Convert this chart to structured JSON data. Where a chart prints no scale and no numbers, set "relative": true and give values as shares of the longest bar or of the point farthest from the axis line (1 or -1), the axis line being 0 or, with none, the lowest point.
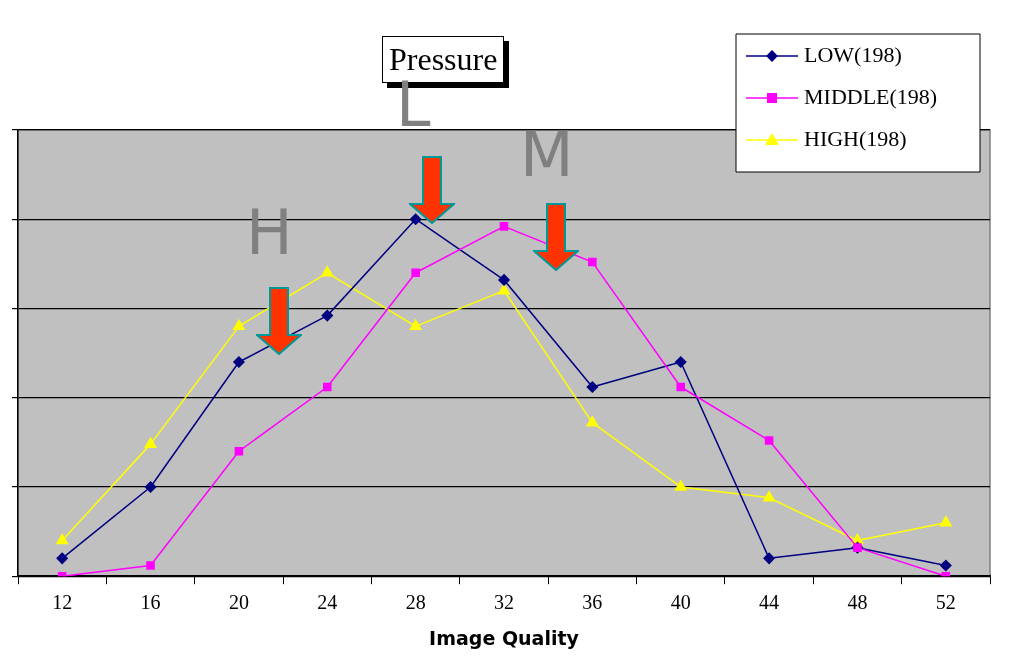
{
  "chart_data": {
    "type": "line",
    "relative": true,
    "xlabel": "Image Quality",
    "categories": [
      "12",
      "16",
      "20",
      "24",
      "28",
      "32",
      "36",
      "40",
      "44",
      "48",
      "52"
    ],
    "series": [
      {
        "name": "LOW(198)",
        "color": "#000080",
        "marker": "diamond",
        "values": [
          0.05,
          0.25,
          0.6,
          0.73,
          1,
          0.83,
          0.53,
          0.6,
          0.05,
          0.08,
          0.03
        ]
      },
      {
        "name": "MIDDLE(198)",
        "color": "#ff00ff",
        "marker": "square",
        "values": [
          0,
          0.03,
          0.35,
          0.53,
          0.85,
          0.98,
          0.88,
          0.53,
          0.38,
          0.08,
          0
        ]
      },
      {
        "name": "HIGH(198)",
        "color": "#ffff00",
        "marker": "triangle",
        "values": [
          0.1,
          0.37,
          0.7,
          0.85,
          0.7,
          0.8,
          0.43,
          0.25,
          0.22,
          0.1,
          0.15
        ]
      }
    ],
    "annotations": [
      "Pressure",
      "L",
      "M",
      "H"
    ],
    "grid": "y",
    "legend": "top right",
    "line_style": "solid"
  }
}
